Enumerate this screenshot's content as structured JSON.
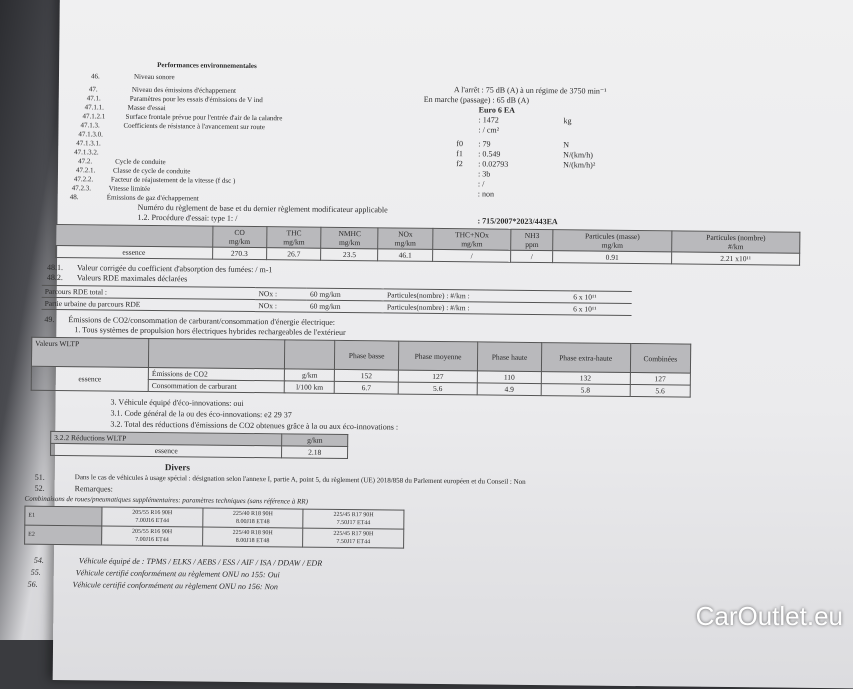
{
  "header": {
    "section_title": "Performances environnementales"
  },
  "lines": [
    {
      "num": "46.",
      "label": "Niveau sonore"
    },
    {
      "num": "47.",
      "label": "Niveau des émissions d'échappement"
    },
    {
      "num": "47.1.",
      "label": "Paramètres pour les essais d'émissions de V ind"
    },
    {
      "num": "47.1.1.",
      "label": "Masse d'essai"
    },
    {
      "num": "47.1.2.1",
      "label": "Surface frontale prévue pour l'entrée d'air de la calandre"
    },
    {
      "num": "47.1.3.",
      "label": "Coefficients de résistance à l'avancement sur route"
    },
    {
      "num": "47.1.3.0.",
      "label": ""
    },
    {
      "num": "47.1.3.1.",
      "label": ""
    },
    {
      "num": "47.1.3.2.",
      "label": ""
    },
    {
      "num": "47.2.",
      "label": "Cycle de conduite"
    },
    {
      "num": "47.2.1.",
      "label": "Classe de cycle de conduite"
    },
    {
      "num": "47.2.2.",
      "label": "Facteur de réajustement de la vitesse (f dsc )"
    },
    {
      "num": "47.2.3.",
      "label": "Vitesse limitée"
    },
    {
      "num": "48.",
      "label": "Émissions de gaz d'échappement"
    }
  ],
  "right_values": {
    "stationary": "A l'arrêt : 75 dB (A) à un régime de 3750 min⁻¹",
    "driving": "En marche (passage) : 65 dB (A)",
    "euro": "Euro 6 EA",
    "mass": ": 1472",
    "mass_unit": "kg",
    "area": ": / cm²",
    "f0_label": "f0",
    "f0": ": 79",
    "f0_unit": "N",
    "f1_label": "f1",
    "f1": ": 0.549",
    "f1_unit": "N/(km/h)",
    "f2_label": "f2",
    "f2": ": 0.02793",
    "f2_unit": "N/(km/h)²",
    "cycle_class": ": 3b",
    "fdsc": ": /",
    "speed_limited": ": non",
    "regulation": ": 715/2007*2023/443EA"
  },
  "reg_line": "Numéro du règlement de base et du dernier règlement modificateur applicable",
  "procedure": "1.2. Procédure d'essai: type 1: /",
  "emissions_table": {
    "headers": [
      [
        "CO",
        "mg/km"
      ],
      [
        "THC",
        "mg/km"
      ],
      [
        "NMHC",
        "mg/km"
      ],
      [
        "NOx",
        "mg/km"
      ],
      [
        "THC+NOx",
        "mg/km"
      ],
      [
        "NH3",
        "ppm"
      ],
      [
        "Particules (masse)",
        "mg/km"
      ],
      [
        "Particules (nombre)",
        "#/km"
      ]
    ],
    "fuel": "essence",
    "values": [
      "270.3",
      "26.7",
      "23.5",
      "46.1",
      "/",
      "/",
      "0.91",
      "2.21 x10¹¹"
    ]
  },
  "l48_1": {
    "num": "48.1.",
    "label": "Valeur corrigée du coefficient d'absorption des fumées: / m-1"
  },
  "l48_2": {
    "num": "48.2.",
    "label": "Valeurs RDE maximales déclarées"
  },
  "rde": [
    {
      "label": "Parcours RDE total :",
      "nox": "NOx :",
      "nox_val": "60 mg/km",
      "pn": "Particules(nombre) : #/km :",
      "pn_val": "6 x 10¹¹"
    },
    {
      "label": "Partie urbaine du parcours RDE",
      "nox": "NOx :",
      "nox_val": "60 mg/km",
      "pn": "Particules(nombre) : #/km :",
      "pn_val": "6 x 10¹¹"
    }
  ],
  "l49": {
    "num": "49.",
    "label": "Émissions de CO2/consommation de carburant/consommation d'énergie électrique:"
  },
  "l49_1": "1. Tous systèmes de propulsion hors électriques hybrides rechargeables de l'extérieur",
  "wltp": {
    "title": "Valeurs WLTP",
    "phases": [
      "Phase basse",
      "Phase moyenne",
      "Phase haute",
      "Phase extra-haute",
      "Combinées"
    ],
    "fuel": "essence",
    "rows": [
      {
        "label": "Émissions de CO2",
        "unit": "g/km",
        "values": [
          "152",
          "127",
          "110",
          "132",
          "127"
        ]
      },
      {
        "label": "Consommation de carburant",
        "unit": "l/100 km",
        "values": [
          "6.7",
          "5.6",
          "4.9",
          "5.8",
          "5.6"
        ]
      }
    ]
  },
  "eco": {
    "l3": "3. Véhicule équipé d'éco-innovations: oui",
    "l31": "3.1. Code général de la ou des éco-innovations: e2 29 37",
    "l32": "3.2. Total des réductions d'émissions de CO2 obtenues grâce à la ou aux éco-innovations :",
    "table_head": "3.2.2 Réductions WLTP",
    "unit": "g/km",
    "fuel": "essence",
    "value": "2.18"
  },
  "divers": {
    "title": "Divers",
    "l51_num": "51.",
    "l51": "Dans le cas de véhicules à usage spécial : désignation selon l'annexe I, partie A, point 5, du règlement (UE) 2018/858 du Parlement européen et du Conseil : Non",
    "l52_num": "52.",
    "l52": "Remarques:",
    "combos": "Combinaisons de roues/pneumatiques supplémentaires: paramètres techniques (sans référence à RR)"
  },
  "tyres": [
    {
      "axle": "E1",
      "cells": [
        [
          "205/55 R16 90H",
          "7.00J16 ET44"
        ],
        [
          "225/40 R18 90H",
          "8.00J18 ET48"
        ],
        [
          "225/45 R17 90H",
          "7.50J17 ET44"
        ]
      ]
    },
    {
      "axle": "E2",
      "cells": [
        [
          "205/55 R16 90H",
          "7.00J16 ET44"
        ],
        [
          "225/40 R18 90H",
          "8.00J18 ET48"
        ],
        [
          "225/45 R17 90H",
          "7.50J17 ET44"
        ]
      ]
    }
  ],
  "footer": [
    {
      "num": "54.",
      "label": "Véhicule équipé de : TPMS / ELKS / AEBS / ESS / AIF / ISA / DDAW / EDR"
    },
    {
      "num": "55.",
      "label": "Véhicule certifié conformément au règlement ONU no 155: Oui"
    },
    {
      "num": "56.",
      "label": "Véhicule certifié conformément au règlement ONU no 156: Non"
    }
  ],
  "watermark": "CarOutlet.eu"
}
